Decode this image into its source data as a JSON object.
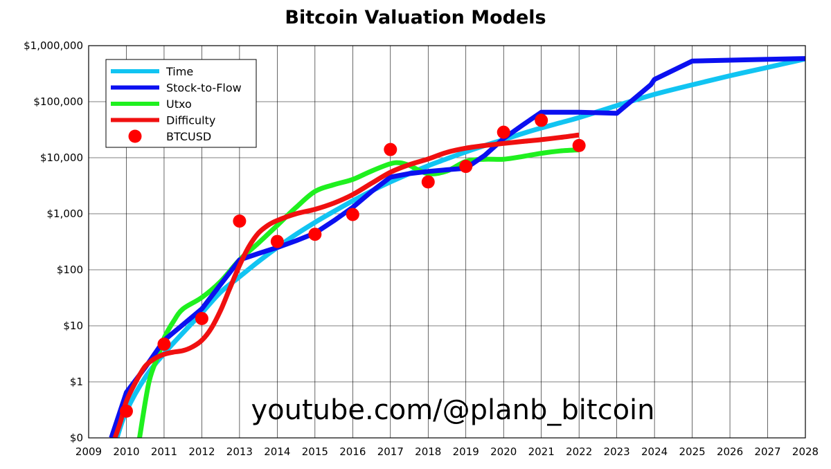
{
  "chart_data": {
    "type": "line",
    "title": "Bitcoin Valuation Models",
    "xlabel": "",
    "ylabel": "",
    "yscale": "log",
    "xlim": [
      2009,
      2028
    ],
    "ylim": [
      0.1,
      1000000
    ],
    "grid": true,
    "legend_position": "top-left",
    "x_ticks": [
      "2009",
      "2010",
      "2011",
      "2012",
      "2013",
      "2014",
      "2015",
      "2016",
      "2017",
      "2018",
      "2019",
      "2020",
      "2021",
      "2022",
      "2023",
      "2024",
      "2025",
      "2026",
      "2027",
      "2028"
    ],
    "y_ticks": [
      {
        "value": 0.1,
        "label": "$0"
      },
      {
        "value": 1,
        "label": "$1"
      },
      {
        "value": 10,
        "label": "$10"
      },
      {
        "value": 100,
        "label": "$100"
      },
      {
        "value": 1000,
        "label": "$1,000"
      },
      {
        "value": 10000,
        "label": "$10,000"
      },
      {
        "value": 100000,
        "label": "$100,000"
      },
      {
        "value": 1000000,
        "label": "$1,000,000"
      }
    ],
    "watermark": "youtube.com/@planb_bitcoin",
    "series": [
      {
        "name": "Time",
        "kind": "line",
        "color": "#11c4f2",
        "x": [
          2009.75,
          2010,
          2010.5,
          2011,
          2011.5,
          2012,
          2012.5,
          2013,
          2013.5,
          2014,
          2014.5,
          2015,
          2015.5,
          2016,
          2016.5,
          2017,
          2017.5,
          2018,
          2018.5,
          2019,
          2019.5,
          2020,
          2020.5,
          2021,
          2021.5,
          2022,
          2023,
          2024,
          2025,
          2026,
          2027,
          2028
        ],
        "y": [
          0.1,
          0.3,
          1.2,
          3.2,
          7.5,
          17,
          40,
          75,
          140,
          250,
          430,
          700,
          1100,
          1700,
          2550,
          3700,
          5200,
          7200,
          9600,
          12700,
          16500,
          21000,
          27000,
          34000,
          42000,
          52000,
          85000,
          135000,
          200000,
          290000,
          410000,
          580000
        ]
      },
      {
        "name": "Stock-to-Flow",
        "kind": "line",
        "color": "#0b10f0",
        "x": [
          2009.6,
          2010,
          2010.5,
          2011,
          2011.5,
          2012,
          2012.5,
          2013,
          2013.5,
          2014,
          2014.5,
          2015,
          2015.5,
          2016,
          2016.5,
          2017,
          2017.5,
          2018,
          2018.5,
          2019,
          2019.5,
          2020,
          2020.5,
          2021,
          2022,
          2023,
          2023.9,
          2024,
          2025,
          2026,
          2027,
          2028
        ],
        "y": [
          0.1,
          0.65,
          1.8,
          5.5,
          10.5,
          20,
          55,
          150,
          195,
          250,
          330,
          450,
          750,
          1300,
          2500,
          4500,
          5200,
          5700,
          6100,
          6500,
          11000,
          22000,
          38000,
          65000,
          65000,
          62000,
          200000,
          250000,
          530000,
          550000,
          570000,
          590000
        ]
      },
      {
        "name": "Utxo",
        "kind": "line",
        "color": "#1ff01f",
        "x": [
          2010.35,
          2010.6,
          2010.85,
          2011,
          2011.25,
          2011.5,
          2012,
          2012.5,
          2013,
          2013.5,
          2014,
          2014.5,
          2015,
          2015.5,
          2016,
          2016.5,
          2017,
          2017.25,
          2017.5,
          2018,
          2018.5,
          2019,
          2019.5,
          2020,
          2020.5,
          2021,
          2021.5,
          2022
        ],
        "y": [
          0.1,
          1,
          3,
          6,
          12,
          20,
          32,
          62,
          150,
          300,
          620,
          1300,
          2500,
          3300,
          4100,
          5800,
          7800,
          8100,
          7300,
          5200,
          5800,
          8600,
          9400,
          9400,
          10500,
          12000,
          13200,
          13800
        ]
      },
      {
        "name": "Difficulty",
        "kind": "line",
        "color": "#f01010",
        "x": [
          2009.7,
          2009.85,
          2010,
          2010.25,
          2010.5,
          2010.75,
          2011,
          2011.25,
          2011.5,
          2011.75,
          2012,
          2012.25,
          2012.5,
          2012.75,
          2013,
          2013.25,
          2013.5,
          2013.75,
          2014,
          2014.5,
          2015,
          2015.5,
          2016,
          2016.5,
          2017,
          2017.5,
          2018,
          2018.5,
          2019,
          2019.5,
          2020,
          2020.5,
          2021,
          2021.5,
          2022
        ],
        "y": [
          0.1,
          0.2,
          0.45,
          1,
          1.9,
          2.6,
          3.1,
          3.4,
          3.6,
          4.2,
          5.5,
          9,
          19,
          48,
          120,
          260,
          450,
          620,
          760,
          1000,
          1200,
          1550,
          2200,
          3500,
          5500,
          7500,
          9500,
          12500,
          14800,
          16500,
          18000,
          19500,
          21000,
          23000,
          25500
        ]
      },
      {
        "name": "BTCUSD",
        "kind": "scatter",
        "color": "#ff0000",
        "x": [
          2010,
          2011,
          2012,
          2013,
          2014,
          2015,
          2016,
          2017,
          2018,
          2019,
          2020,
          2021,
          2022
        ],
        "y": [
          0.3,
          4.7,
          13.5,
          740,
          320,
          430,
          970,
          14000,
          3700,
          7000,
          28500,
          46500,
          16500
        ]
      }
    ]
  }
}
